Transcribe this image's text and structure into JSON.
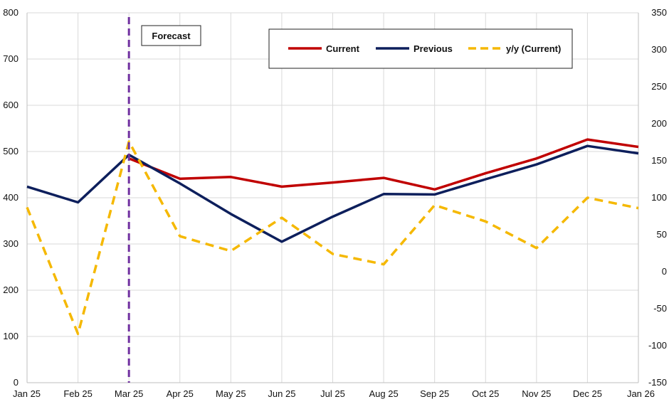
{
  "chart_data": {
    "type": "line",
    "title": "",
    "xlabel": "",
    "ylabel": "",
    "y2label": "",
    "categories": [
      "Jan 25",
      "Feb 25",
      "Mar 25",
      "Apr 25",
      "May 25",
      "Jun 25",
      "Jul 25",
      "Aug 25",
      "Sep 25",
      "Oct 25",
      "Nov 25",
      "Dec 25",
      "Jan 26"
    ],
    "ylim": [
      0,
      800
    ],
    "yticks": [
      0,
      100,
      200,
      300,
      400,
      500,
      600,
      700,
      800
    ],
    "y2lim": [
      -150,
      350
    ],
    "y2ticks": [
      -150,
      -100,
      -50,
      0,
      50,
      100,
      150,
      200,
      250,
      300,
      350
    ],
    "grid": true,
    "legend_position": "top-right",
    "annotation": {
      "label": "Forecast",
      "x": "Mar 25"
    },
    "series": [
      {
        "name": "Current",
        "axis": "left",
        "color": "#c00000",
        "style": "solid",
        "values": [
          null,
          null,
          485,
          441,
          445,
          424,
          433,
          443,
          418,
          453,
          485,
          526,
          510
        ]
      },
      {
        "name": "Previous",
        "axis": "left",
        "color": "#0d1f5c",
        "style": "solid",
        "values": [
          424,
          390,
          493,
          431,
          365,
          305,
          359,
          408,
          407,
          440,
          472,
          512,
          496
        ]
      },
      {
        "name": "y/y (Current)",
        "axis": "right",
        "color": "#f5b800",
        "style": "dashed",
        "values": [
          87,
          -84,
          176,
          48,
          28,
          73,
          24,
          10,
          90,
          68,
          32,
          100,
          86
        ]
      }
    ]
  }
}
